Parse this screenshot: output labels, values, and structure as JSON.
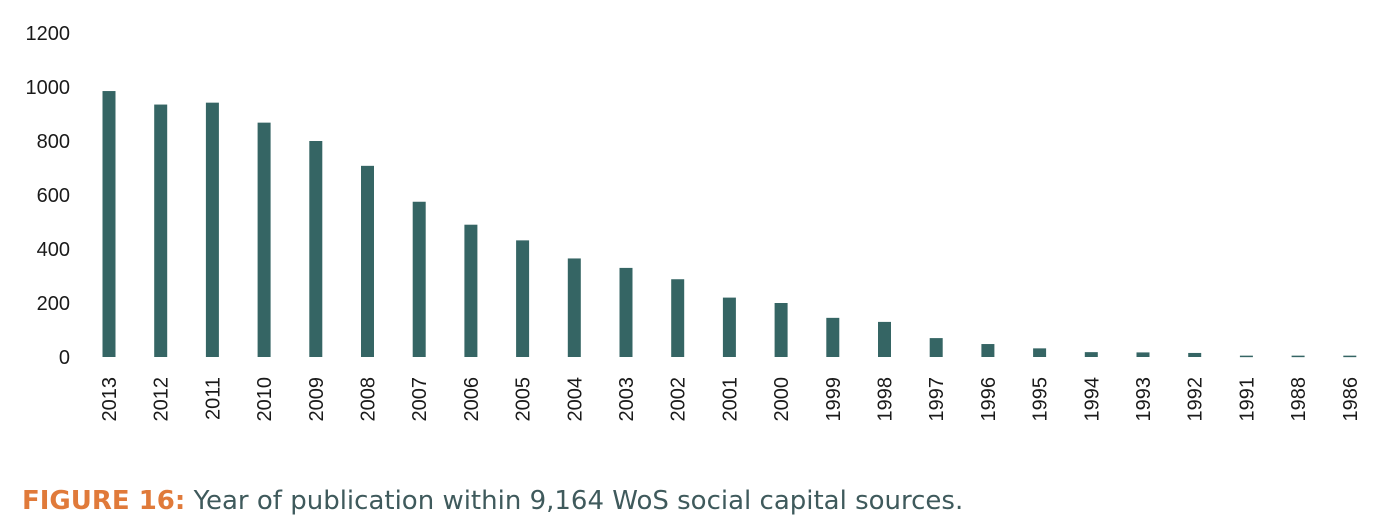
{
  "chart_data": {
    "type": "bar",
    "title": "",
    "xlabel": "",
    "ylabel": "",
    "categories": [
      "2013",
      "2012",
      "2011",
      "2010",
      "2009",
      "2008",
      "2007",
      "2006",
      "2005",
      "2004",
      "2003",
      "2002",
      "2001",
      "2000",
      "1999",
      "1998",
      "1997",
      "1996",
      "1995",
      "1994",
      "1993",
      "1992",
      "1991",
      "1988",
      "1986"
    ],
    "values": [
      985,
      935,
      942,
      868,
      800,
      708,
      575,
      490,
      432,
      365,
      330,
      288,
      220,
      200,
      145,
      130,
      70,
      48,
      32,
      18,
      17,
      15,
      5,
      5,
      5
    ],
    "ylim": [
      0,
      1200
    ],
    "yticks": [
      0,
      200,
      400,
      600,
      800,
      1000,
      1200
    ],
    "grid": false,
    "legend": "none",
    "bar_color": "#356564"
  },
  "caption": {
    "label": "FIGURE 16:",
    "text": " Year of publication within 9,164 WoS social capital sources.",
    "label_color": "#e07a3a",
    "text_color": "#3f5a5c"
  }
}
